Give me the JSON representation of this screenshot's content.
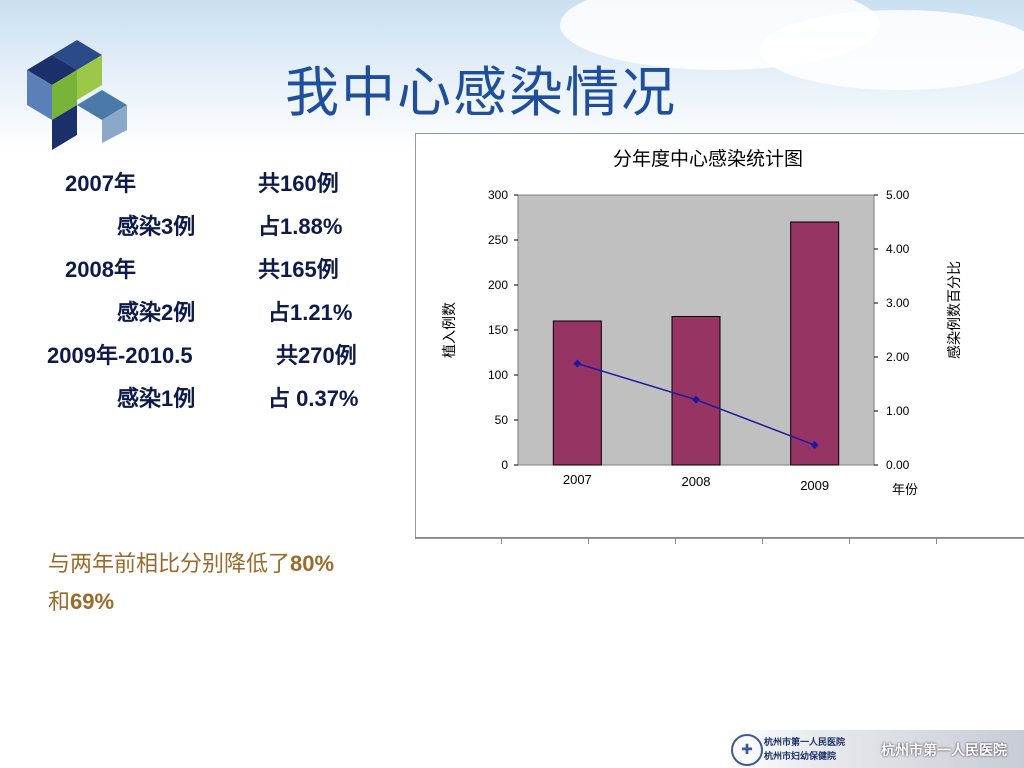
{
  "slide": {
    "title": "我中心感染情况"
  },
  "stats": {
    "rows": [
      {
        "left": "2007年",
        "right": "共160例"
      },
      {
        "left": "感染3例",
        "right": "占1.88%"
      },
      {
        "left": "2008年",
        "right": "共165例"
      },
      {
        "left": "感染2例",
        "right": "占1.21%"
      },
      {
        "left": "2009年-2010.5",
        "right": "共270例"
      },
      {
        "left": "感染1例",
        "right": "占 0.37%"
      }
    ]
  },
  "summary": {
    "line1_prefix": "与两年前相比分别降低了",
    "line1_value": "80%",
    "line2_prefix": "和",
    "line2_value": "69%"
  },
  "footer": {
    "hospital_line1": "杭州市第一人民医院",
    "hospital_line2": "杭州市妇幼保健院",
    "hospital_banner": "杭州市第一人民医院"
  },
  "colors": {
    "title": "#1f4e9a",
    "bar": "#963464",
    "line": "#1a1aa0",
    "plot_bg": "#c0c0c0"
  },
  "chart_data": {
    "type": "bar",
    "title": "分年度中心感染统计图",
    "categories": [
      "2007",
      "2008",
      "2009"
    ],
    "xlabel": "年份",
    "ylabel": "植入例数",
    "y2label": "感染例数百分比",
    "ylim": [
      0,
      300
    ],
    "yticks": [
      "0",
      "50",
      "100",
      "150",
      "200",
      "250",
      "300"
    ],
    "y2lim": [
      0,
      5
    ],
    "y2ticks": [
      "0.00",
      "1.00",
      "2.00",
      "3.00",
      "4.00",
      "5.00"
    ],
    "grid": false,
    "series": [
      {
        "type": "bar",
        "axis": "left",
        "values": [
          160,
          165,
          270
        ]
      },
      {
        "type": "line",
        "axis": "right",
        "values": [
          1.88,
          1.21,
          0.37
        ]
      }
    ]
  }
}
